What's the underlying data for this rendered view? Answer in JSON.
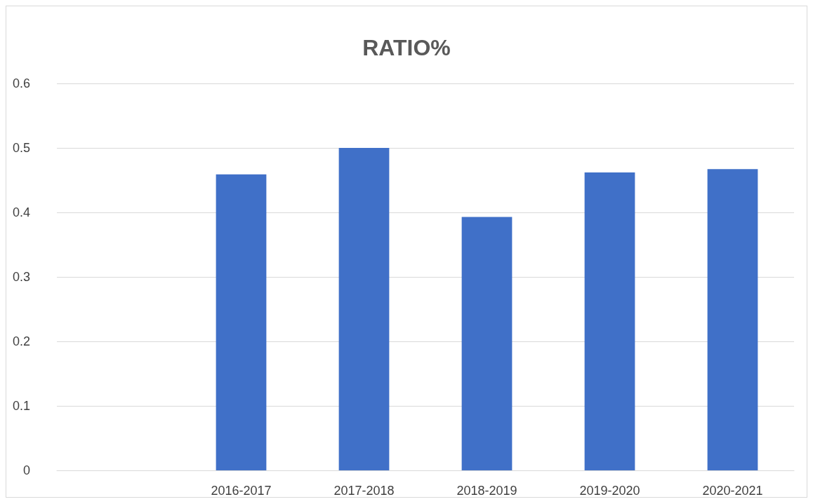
{
  "chart_data": {
    "type": "bar",
    "title": "RATIO%",
    "categories": [
      null,
      "2016-2017",
      "2017-2018",
      "2018-2019",
      "2019-2020",
      "2020-2021"
    ],
    "values": [
      null,
      0.459,
      0.5,
      0.393,
      0.462,
      0.467
    ],
    "color": "#4070c8",
    "ylim": [
      0,
      0.6
    ],
    "yticks": [
      0,
      0.1,
      0.2,
      0.3,
      0.4,
      0.5,
      0.6
    ],
    "grid": "y"
  }
}
